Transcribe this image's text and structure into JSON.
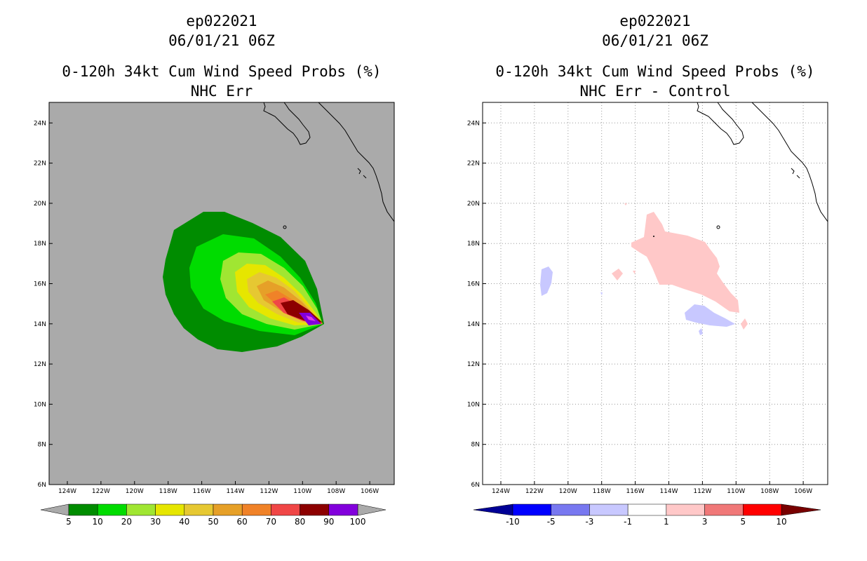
{
  "panels": [
    {
      "storm": "ep022021",
      "datetime": "06/01/21 06Z",
      "product": "0-120h 34kt Cum Wind Speed Probs (%)",
      "subtitle": "NHC Err",
      "colorbar": {
        "labels": [
          "5",
          "10",
          "20",
          "30",
          "40",
          "50",
          "60",
          "70",
          "80",
          "90",
          "100"
        ],
        "colors": [
          "#008c00",
          "#00dc00",
          "#a0e632",
          "#e6e600",
          "#e6c832",
          "#e6a028",
          "#f08228",
          "#f04646",
          "#8c0000",
          "#8200dc"
        ],
        "under_color": "#aaaaaa",
        "over_color": "#aaaaaa"
      }
    },
    {
      "storm": "ep022021",
      "datetime": "06/01/21 06Z",
      "product": "0-120h 34kt Cum Wind Speed Probs (%)",
      "subtitle": "NHC Err - Control",
      "colorbar": {
        "labels": [
          "-10",
          "-5",
          "-3",
          "-1",
          "1",
          "3",
          "5",
          "10"
        ],
        "colors": [
          "#0000ff",
          "#7878f0",
          "#c8c8ff",
          "#ffffff",
          "#ffc8c8",
          "#f07878",
          "#ff0000"
        ],
        "under_color": "#000096",
        "over_color": "#780000"
      }
    }
  ],
  "axes": {
    "lon_labels": [
      "124W",
      "122W",
      "120W",
      "118W",
      "116W",
      "114W",
      "112W",
      "110W",
      "108W",
      "106W"
    ],
    "lat_labels": [
      "6N",
      "8N",
      "10N",
      "12N",
      "14N",
      "16N",
      "18N",
      "20N",
      "22N",
      "24N"
    ]
  },
  "colors": {
    "background_left": "#aaaaaa",
    "background_right": "#ffffff",
    "grid": "#999999"
  }
}
